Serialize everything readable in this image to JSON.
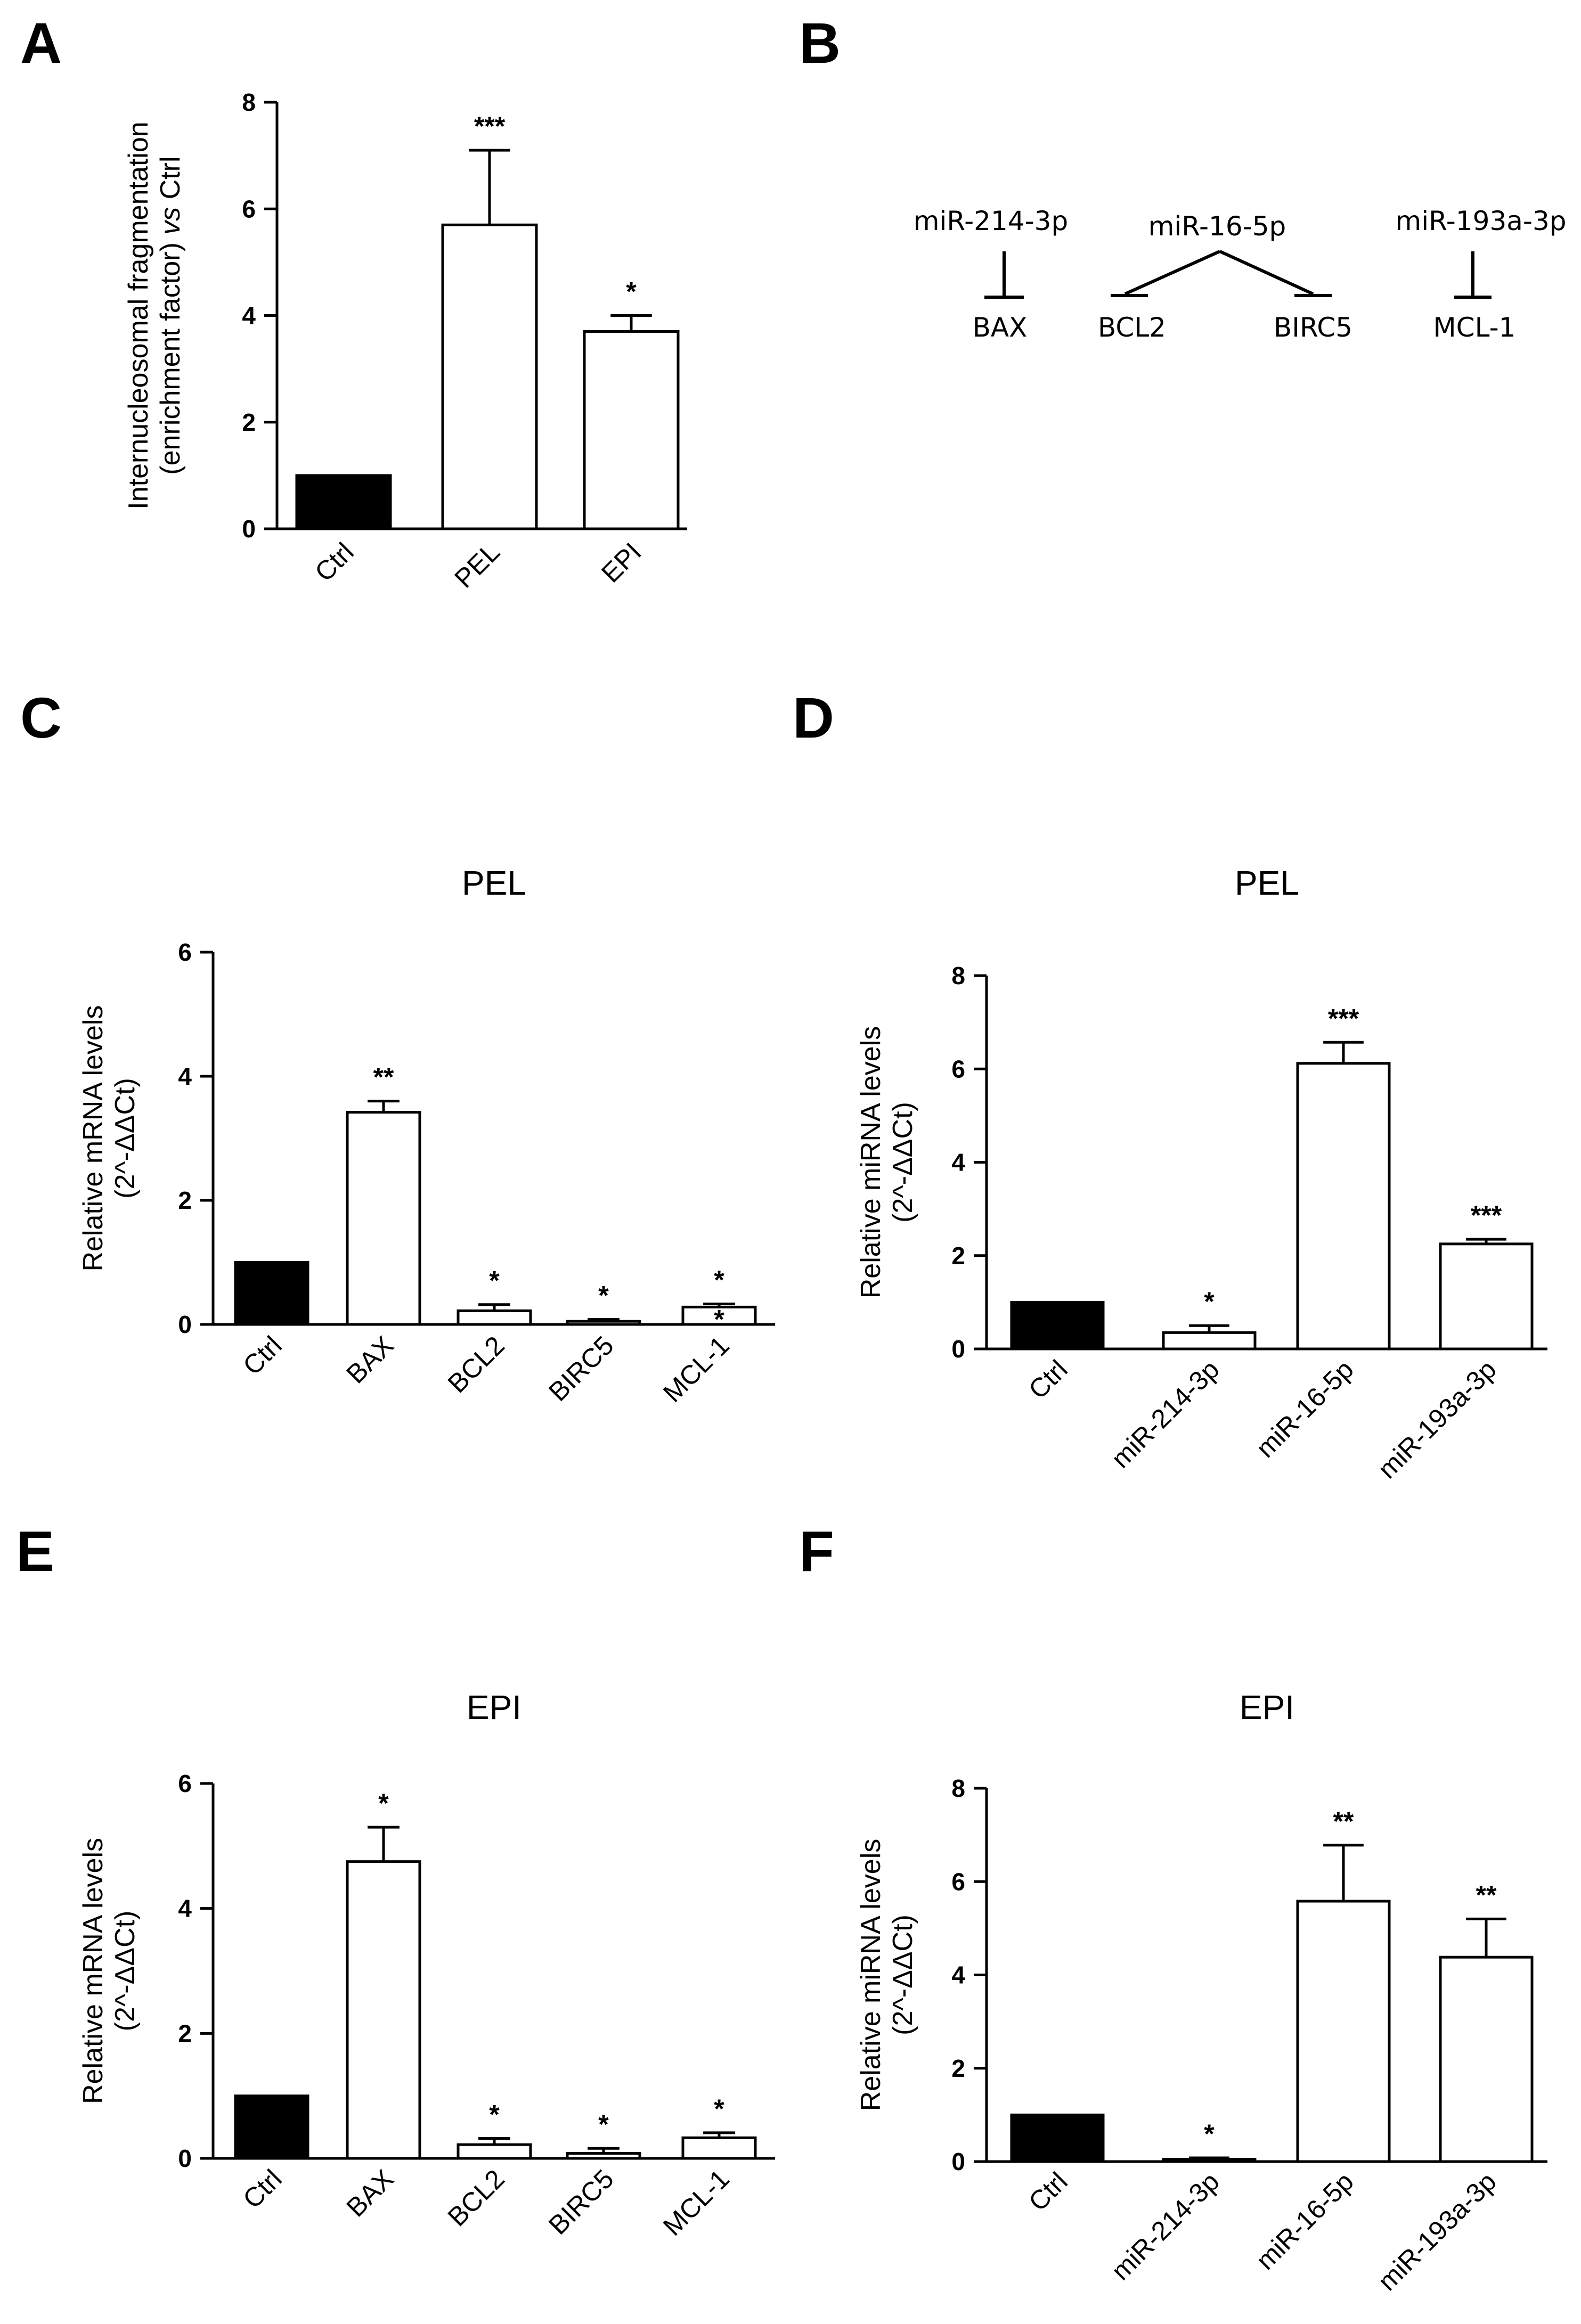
{
  "figure": {
    "panel_letters": [
      "A",
      "B",
      "C",
      "D",
      "E",
      "F"
    ]
  },
  "diagram": {
    "mirna_left": "miR-214-3p",
    "mirna_middle": "miR-16-5p",
    "mirna_right": "miR-193a-3p",
    "target_left": "BAX",
    "target_mid_left": "BCL2",
    "target_mid_right": "BIRC5",
    "target_right": "MCL-1"
  },
  "colors": {
    "control_bar": "#000000",
    "treated_bar": "#ffffff",
    "stroke": "#000000"
  },
  "chart_data": [
    {
      "panel": "A",
      "type": "bar",
      "title": "",
      "ylabel_line1": "Internucleosomal fragmentation",
      "ylabel_line2_prefix": "(enrichment factor) ",
      "ylabel_line2_italic": "vs",
      "ylabel_line2_suffix": " Ctrl",
      "categories": [
        "Ctrl",
        "PEL",
        "EPI"
      ],
      "values": [
        1.0,
        5.7,
        3.7
      ],
      "errors": [
        0,
        1.4,
        0.3
      ],
      "significance": [
        [],
        [
          "***"
        ],
        [
          "*"
        ]
      ],
      "ylim": [
        0,
        8
      ],
      "yticks": [
        "0",
        "2",
        "4",
        "6",
        "8"
      ]
    },
    {
      "panel": "C",
      "type": "bar",
      "title": "PEL",
      "ylabel_line1": "Relative mRNA levels",
      "ylabel_line2": "(2^-ΔΔCt)",
      "categories": [
        "Ctrl",
        "BAX",
        "BCL2",
        "BIRC5",
        "MCL-1"
      ],
      "values": [
        1.0,
        3.42,
        0.22,
        0.05,
        0.28
      ],
      "errors": [
        0,
        0.18,
        0.1,
        0.03,
        0.05
      ],
      "significance": [
        [],
        [
          "**"
        ],
        [
          "*"
        ],
        [
          "*"
        ],
        [
          "*",
          "*"
        ]
      ],
      "ylim": [
        0,
        6
      ],
      "yticks": [
        "0",
        "2",
        "4",
        "6"
      ]
    },
    {
      "panel": "D",
      "type": "bar",
      "title": "PEL",
      "ylabel_line1": "Relative miRNA levels",
      "ylabel_line2": "(2^-ΔΔCt)",
      "categories": [
        "Ctrl",
        "miR-214-3p",
        "miR-16-5p",
        "miR-193a-3p"
      ],
      "values": [
        1.0,
        0.35,
        6.12,
        2.25
      ],
      "errors": [
        0,
        0.15,
        0.45,
        0.1
      ],
      "significance": [
        [],
        [
          "*"
        ],
        [
          "***"
        ],
        [
          "***"
        ]
      ],
      "ylim": [
        0,
        8
      ],
      "yticks": [
        "0",
        "2",
        "4",
        "6",
        "8"
      ]
    },
    {
      "panel": "E",
      "type": "bar",
      "title": "EPI",
      "ylabel_line1": "Relative mRNA levels",
      "ylabel_line2": "(2^-ΔΔCt)",
      "categories": [
        "Ctrl",
        "BAX",
        "BCL2",
        "BIRC5",
        "MCL-1"
      ],
      "values": [
        1.0,
        4.75,
        0.22,
        0.08,
        0.33
      ],
      "errors": [
        0,
        0.55,
        0.1,
        0.08,
        0.08
      ],
      "significance": [
        [],
        [
          "*"
        ],
        [
          "*"
        ],
        [
          "*"
        ],
        [
          "*"
        ]
      ],
      "ylim": [
        0,
        6
      ],
      "yticks": [
        "0",
        "2",
        "4",
        "6"
      ]
    },
    {
      "panel": "F",
      "type": "bar",
      "title": "EPI",
      "ylabel_line1": "Relative miRNA levels",
      "ylabel_line2": "(2^-ΔΔCt)",
      "categories": [
        "Ctrl",
        "miR-214-3p",
        "miR-16-5p",
        "miR-193a-3p"
      ],
      "values": [
        1.0,
        0.05,
        5.58,
        4.38
      ],
      "errors": [
        0,
        0.03,
        1.2,
        0.82
      ],
      "significance": [
        [],
        [
          "*"
        ],
        [
          "**"
        ],
        [
          "**"
        ]
      ],
      "ylim": [
        0,
        8
      ],
      "yticks": [
        "0",
        "2",
        "4",
        "6",
        "8"
      ]
    }
  ]
}
